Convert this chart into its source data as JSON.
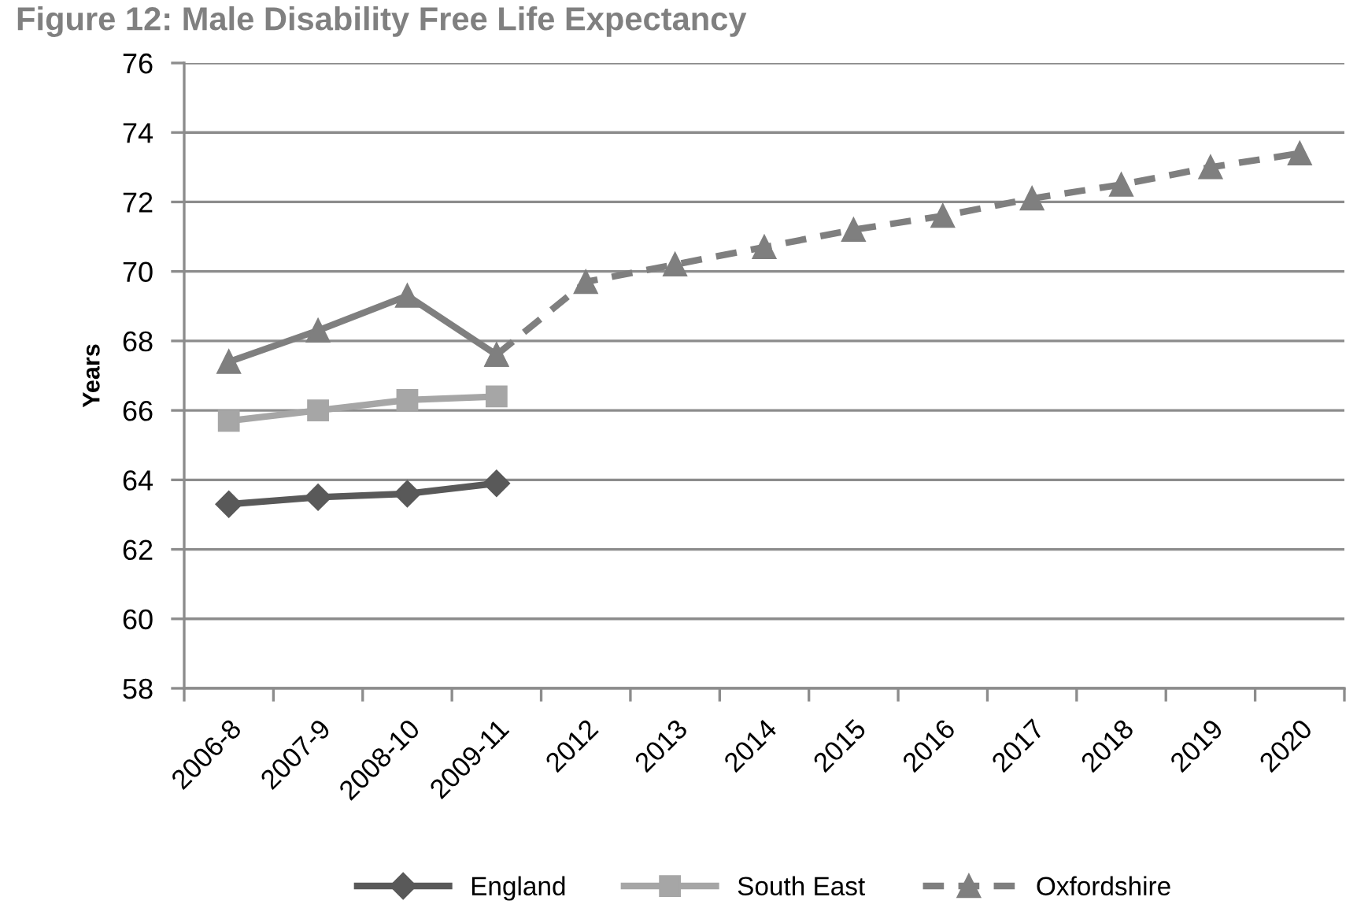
{
  "chart_data": {
    "type": "line",
    "title": "Figure 12: Male Disability Free Life Expectancy",
    "ylabel": "Years",
    "categories": [
      "2006-8",
      "2007-9",
      "2008-10",
      "2009-11",
      "2012",
      "2013",
      "2014",
      "2015",
      "2016",
      "2017",
      "2018",
      "2019",
      "2020"
    ],
    "series": [
      {
        "name": "England",
        "color": "#595959",
        "marker": "diamond",
        "line_style": "solid",
        "values": [
          63.3,
          63.5,
          63.6,
          63.9,
          null,
          null,
          null,
          null,
          null,
          null,
          null,
          null,
          null
        ]
      },
      {
        "name": "South East",
        "color": "#a6a6a6",
        "marker": "square",
        "line_style": "solid",
        "values": [
          65.7,
          66.0,
          66.3,
          66.4,
          null,
          null,
          null,
          null,
          null,
          null,
          null,
          null,
          null
        ]
      },
      {
        "name": "Oxfordshire",
        "color": "#7f7f7f",
        "marker": "triangle",
        "line_style": "dashed",
        "values": [
          null,
          null,
          null,
          67.6,
          69.7,
          70.2,
          70.7,
          71.2,
          71.6,
          72.1,
          72.5,
          73.0,
          73.4
        ]
      },
      {
        "color": "#7f7f7f",
        "marker": "triangle",
        "line_style": "solid",
        "values": [
          67.4,
          68.3,
          69.3,
          67.6,
          null,
          null,
          null,
          null,
          null,
          null,
          null,
          null,
          null
        ]
      }
    ],
    "ylim": [
      58,
      76
    ],
    "yticks": [
      58,
      60,
      62,
      64,
      66,
      68,
      70,
      72,
      74,
      76
    ],
    "grid": "y",
    "legend": "bottom"
  }
}
